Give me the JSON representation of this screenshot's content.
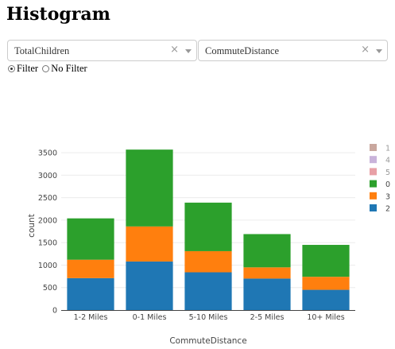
{
  "page": {
    "title": "Histogram"
  },
  "controls": {
    "dropdown_1": {
      "value": "TotalChildren",
      "clear_glyph": "×"
    },
    "dropdown_2": {
      "value": "CommuteDistance",
      "clear_glyph": "×"
    },
    "radio": {
      "options": [
        {
          "label": "Filter",
          "selected": true
        },
        {
          "label": "No Filter",
          "selected": false
        }
      ]
    }
  },
  "chart_data": {
    "type": "bar",
    "stacked": true,
    "title": "",
    "xlabel": "CommuteDistance",
    "ylabel": "count",
    "ylim": [
      0,
      3750
    ],
    "yticks": [
      0,
      500,
      1000,
      1500,
      2000,
      2500,
      3000,
      3500
    ],
    "grid": true,
    "legend_position": "right",
    "categories": [
      "1-2 Miles",
      "0-1 Miles",
      "5-10 Miles",
      "2-5 Miles",
      "10+ Miles"
    ],
    "series": [
      {
        "name": "2",
        "color": "#1f77b4",
        "values": [
          710,
          1080,
          840,
          700,
          450
        ]
      },
      {
        "name": "3",
        "color": "#ff7f0e",
        "values": [
          410,
          780,
          470,
          250,
          290
        ]
      },
      {
        "name": "0",
        "color": "#2ca02c",
        "values": [
          920,
          1710,
          1080,
          740,
          710
        ]
      },
      {
        "name": "5",
        "color": "#e8a0a6",
        "values": [
          0,
          0,
          0,
          0,
          0
        ]
      },
      {
        "name": "4",
        "color": "#c9b3da",
        "values": [
          0,
          0,
          0,
          0,
          0
        ]
      },
      {
        "name": "1",
        "color": "#c9a79e",
        "values": [
          0,
          0,
          0,
          0,
          0
        ]
      }
    ],
    "legend_order": [
      "1",
      "4",
      "5",
      "0",
      "3",
      "2"
    ]
  }
}
